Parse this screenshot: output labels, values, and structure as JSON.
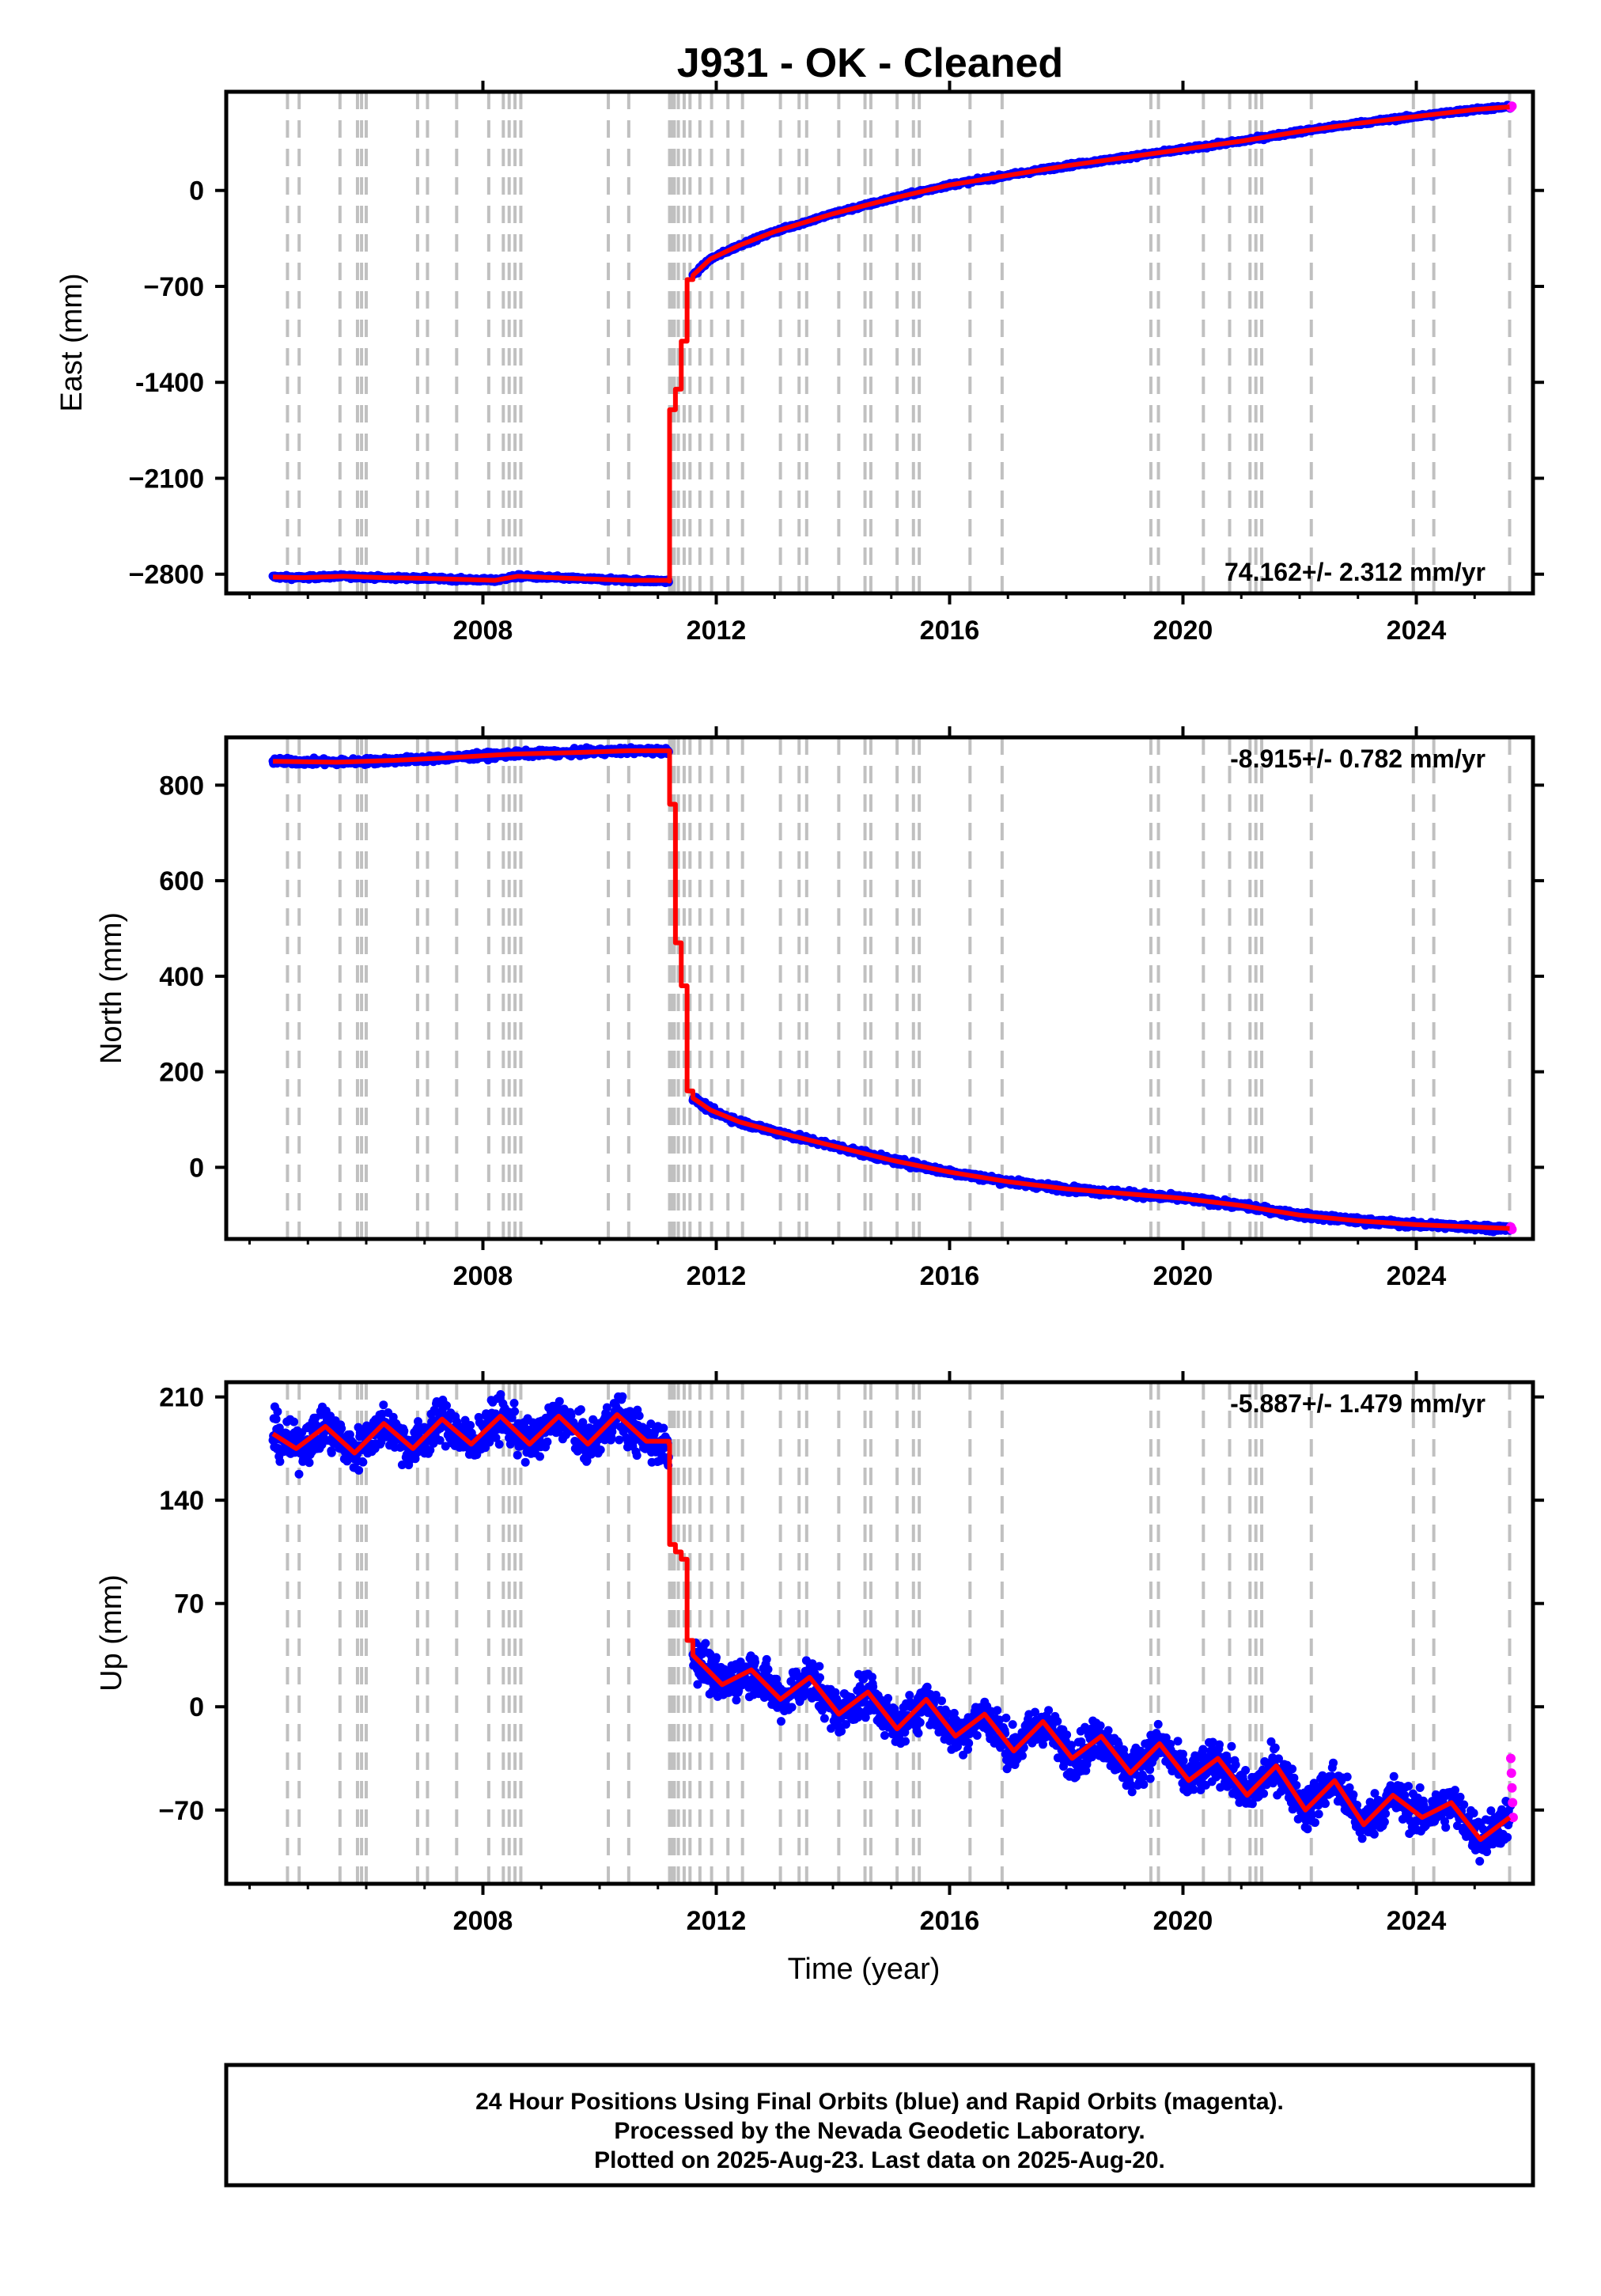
{
  "title": "J931  - OK - Cleaned",
  "footer": {
    "line1": "24 Hour Positions Using Final Orbits (blue) and Rapid Orbits (magenta).",
    "line2": "Processed by the Nevada Geodetic Laboratory.",
    "line3": "Plotted on 2025-Aug-23. Last data on 2025-Aug-20."
  },
  "colors": {
    "final_points": "#0000ff",
    "rapid_points": "#ff00ff",
    "model_line": "#ff0000",
    "event_lines": "#c0c0c0"
  },
  "chart_data": [
    {
      "name": "east",
      "type": "scatter",
      "ylabel": "East (mm)",
      "xlabel": "",
      "rate_label": "74.162+/- 2.312 mm/yr",
      "rate_position": "bottom-right",
      "xlim": [
        2003.6,
        2026.0
      ],
      "ylim": [
        -2940,
        720
      ],
      "xticks": [
        2008,
        2012,
        2016,
        2020,
        2024
      ],
      "xtick_labels": [
        "2008",
        "2012",
        "2016",
        "2020",
        "2024"
      ],
      "yticks": [
        0,
        -700,
        -1400,
        -2100,
        -2800
      ],
      "ytick_labels": [
        "0",
        "−700",
        "-1400",
        "−2100",
        "−2800"
      ],
      "grid": false,
      "model": {
        "x": [
          2004.4,
          2004.9,
          2005.6,
          2006.3,
          2007.0,
          2007.8,
          2008.2,
          2008.6,
          2009.5,
          2010.5,
          2011.19,
          2011.2,
          2011.3,
          2011.4,
          2011.5,
          2011.6,
          2011.9,
          2012.4,
          2013.0,
          2014.0,
          2015.0,
          2016.0,
          2017.0,
          2018.0,
          2019.0,
          2020.0,
          2021.0,
          2022.0,
          2023.0,
          2024.0,
          2025.0,
          2025.6
        ],
        "y": [
          -2820,
          -2825,
          -2815,
          -2825,
          -2830,
          -2840,
          -2845,
          -2815,
          -2830,
          -2845,
          -2850,
          -1600,
          -1450,
          -1100,
          -650,
          -620,
          -500,
          -400,
          -300,
          -170,
          -60,
          40,
          110,
          180,
          240,
          300,
          360,
          430,
          490,
          540,
          590,
          610
        ]
      },
      "final_points": {
        "x": [
          2004.4,
          2008.0,
          2011.19,
          2011.6,
          2014.0,
          2018.0,
          2022.0,
          2025.6
        ],
        "y": [
          -2820,
          -2845,
          -2850,
          -620,
          -170,
          180,
          430,
          610
        ]
      },
      "rapid_points": {
        "x": [
          2025.62,
          2025.64
        ],
        "y": [
          605,
          615
        ]
      },
      "event_lines_x": [
        2004.65,
        2004.85,
        2005.55,
        2005.85,
        2005.92,
        2006.0,
        2006.88,
        2007.05,
        2007.55,
        2008.1,
        2008.35,
        2008.45,
        2008.55,
        2008.65,
        2010.15,
        2010.5,
        2011.2,
        2011.24,
        2011.28,
        2011.35,
        2011.45,
        2011.55,
        2011.72,
        2011.92,
        2012.2,
        2012.45,
        2013.1,
        2013.42,
        2013.55,
        2014.1,
        2014.55,
        2014.65,
        2015.1,
        2015.38,
        2015.48,
        2016.35,
        2016.9,
        2019.45,
        2019.58,
        2020.35,
        2020.8,
        2021.15,
        2021.25,
        2021.35,
        2022.2,
        2023.95,
        2024.3,
        2025.6
      ]
    },
    {
      "name": "north",
      "type": "scatter",
      "ylabel": "North (mm)",
      "xlabel": "",
      "rate_label": "-8.915+/- 0.782 mm/yr",
      "rate_position": "top-right",
      "xlim": [
        2003.6,
        2026.0
      ],
      "ylim": [
        -150,
        900
      ],
      "xticks": [
        2008,
        2012,
        2016,
        2020,
        2024
      ],
      "xtick_labels": [
        "2008",
        "2012",
        "2016",
        "2020",
        "2024"
      ],
      "yticks": [
        800,
        600,
        400,
        200,
        0
      ],
      "ytick_labels": [
        "800",
        "600",
        "400",
        "200",
        "0"
      ],
      "grid": false,
      "model": {
        "x": [
          2004.4,
          2005.5,
          2006.5,
          2007.5,
          2008.5,
          2009.5,
          2010.5,
          2011.19,
          2011.2,
          2011.3,
          2011.4,
          2011.5,
          2011.6,
          2011.9,
          2012.4,
          2013.0,
          2014.0,
          2015.0,
          2016.0,
          2017.0,
          2018.0,
          2019.0,
          2020.0,
          2021.0,
          2022.0,
          2023.0,
          2024.0,
          2025.0,
          2025.6
        ],
        "y": [
          850,
          848,
          852,
          858,
          865,
          868,
          872,
          872,
          760,
          470,
          380,
          160,
          145,
          120,
          95,
          75,
          45,
          15,
          -10,
          -30,
          -45,
          -55,
          -65,
          -80,
          -100,
          -112,
          -120,
          -125,
          -128
        ]
      },
      "final_points": {
        "x": [
          2004.4,
          2008.0,
          2011.19,
          2011.6,
          2014.0,
          2018.0,
          2022.0,
          2025.6
        ],
        "y": [
          850,
          862,
          872,
          145,
          45,
          -45,
          -100,
          -128
        ]
      },
      "rapid_points": {
        "x": [
          2025.62,
          2025.64
        ],
        "y": [
          -125,
          -130
        ]
      },
      "event_lines_x": [
        2004.65,
        2004.85,
        2005.55,
        2005.85,
        2005.92,
        2006.0,
        2006.88,
        2007.05,
        2007.55,
        2008.1,
        2008.35,
        2008.45,
        2008.55,
        2008.65,
        2010.15,
        2010.5,
        2011.2,
        2011.24,
        2011.28,
        2011.35,
        2011.45,
        2011.55,
        2011.72,
        2011.92,
        2012.2,
        2012.45,
        2013.1,
        2013.42,
        2013.55,
        2014.1,
        2014.55,
        2014.65,
        2015.1,
        2015.38,
        2015.48,
        2016.35,
        2016.9,
        2019.45,
        2019.58,
        2020.35,
        2020.8,
        2021.15,
        2021.25,
        2021.35,
        2022.2,
        2023.95,
        2024.3,
        2025.6
      ]
    },
    {
      "name": "up",
      "type": "scatter",
      "ylabel": "Up (mm)",
      "xlabel": "Time (year)",
      "rate_label": "-5.887+/- 1.479 mm/yr",
      "rate_position": "top-right",
      "xlim": [
        2003.6,
        2026.0
      ],
      "ylim": [
        -120,
        220
      ],
      "xticks": [
        2008,
        2012,
        2016,
        2020,
        2024
      ],
      "xtick_labels": [
        "2008",
        "2012",
        "2016",
        "2020",
        "2024"
      ],
      "yticks": [
        210,
        140,
        70,
        0,
        -70
      ],
      "ytick_labels": [
        "210",
        "140",
        "70",
        "0",
        "−70"
      ],
      "grid": false,
      "model": {
        "x": [
          2004.4,
          2004.8,
          2005.3,
          2005.8,
          2006.3,
          2006.8,
          2007.3,
          2007.8,
          2008.3,
          2008.8,
          2009.3,
          2009.8,
          2010.3,
          2010.8,
          2011.19,
          2011.2,
          2011.3,
          2011.4,
          2011.5,
          2011.6,
          2012.1,
          2012.6,
          2013.1,
          2013.6,
          2014.1,
          2014.6,
          2015.1,
          2015.6,
          2016.1,
          2016.6,
          2017.1,
          2017.6,
          2018.1,
          2018.6,
          2019.1,
          2019.6,
          2020.1,
          2020.6,
          2021.1,
          2021.6,
          2022.1,
          2022.6,
          2023.1,
          2023.6,
          2024.1,
          2024.6,
          2025.1,
          2025.6
        ],
        "y": [
          185,
          175,
          190,
          172,
          192,
          175,
          195,
          178,
          197,
          178,
          197,
          178,
          198,
          180,
          178,
          110,
          105,
          100,
          45,
          35,
          15,
          25,
          5,
          20,
          -5,
          10,
          -15,
          5,
          -20,
          -5,
          -30,
          -10,
          -35,
          -20,
          -45,
          -25,
          -50,
          -35,
          -60,
          -40,
          -70,
          -50,
          -80,
          -60,
          -75,
          -65,
          -90,
          -75
        ]
      },
      "final_points": {
        "x": [
          2004.4,
          2008.0,
          2011.19,
          2011.6,
          2014.0,
          2018.0,
          2022.0,
          2025.6
        ],
        "y": [
          185,
          185,
          178,
          35,
          5,
          -30,
          -60,
          -75
        ]
      },
      "rapid_points": {
        "x": [
          2025.62,
          2025.63,
          2025.64,
          2025.65,
          2025.66
        ],
        "y": [
          -35,
          -45,
          -55,
          -65,
          -75
        ]
      },
      "event_lines_x": [
        2004.65,
        2004.85,
        2005.55,
        2005.85,
        2005.92,
        2006.0,
        2006.88,
        2007.05,
        2007.55,
        2008.1,
        2008.35,
        2008.45,
        2008.55,
        2008.65,
        2010.15,
        2010.5,
        2011.2,
        2011.24,
        2011.28,
        2011.35,
        2011.45,
        2011.55,
        2011.72,
        2011.92,
        2012.2,
        2012.45,
        2013.1,
        2013.42,
        2013.55,
        2014.1,
        2014.55,
        2014.65,
        2015.1,
        2015.38,
        2015.48,
        2016.35,
        2016.9,
        2019.45,
        2019.58,
        2020.35,
        2020.8,
        2021.15,
        2021.25,
        2021.35,
        2022.2,
        2023.95,
        2024.3,
        2025.6
      ]
    }
  ]
}
